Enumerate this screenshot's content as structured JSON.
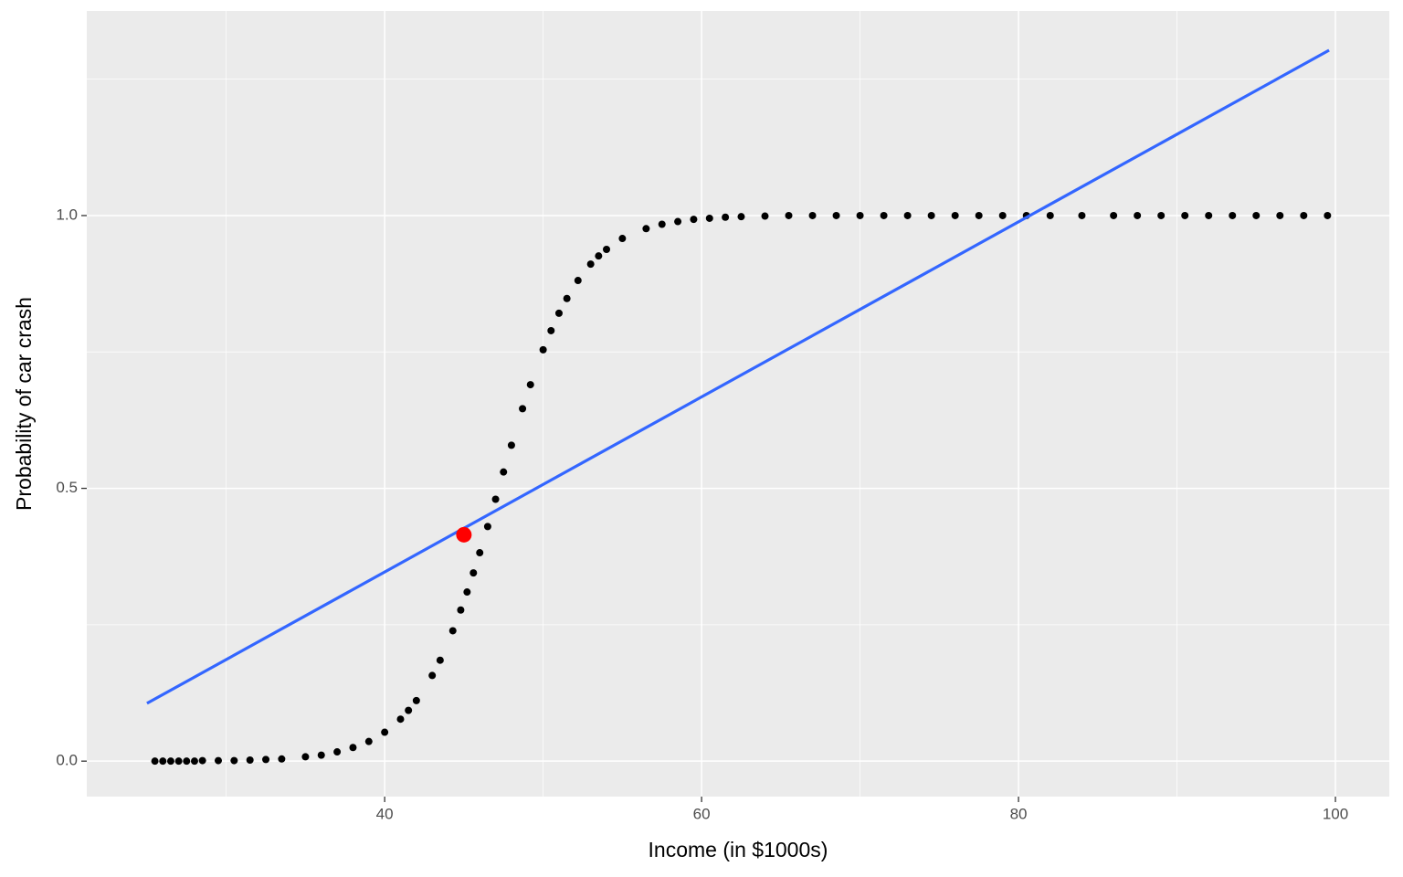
{
  "chart_data": {
    "type": "scatter",
    "x_label": "Income (in $1000s)",
    "y_label": "Probability of car crash",
    "xlim": [
      21.2,
      103.4
    ],
    "ylim": [
      -0.065,
      1.375
    ],
    "xticks": [
      40,
      60,
      80,
      100
    ],
    "yticks": [
      {
        "value": 0,
        "label": "0.0"
      },
      {
        "value": 0.5,
        "label": "0.5"
      },
      {
        "value": 1,
        "label": "1.0"
      }
    ],
    "minor_xticks": [
      30,
      50,
      70,
      90
    ],
    "minor_yticks": [
      0.25,
      0.75,
      1.25
    ],
    "grid": true,
    "series": [
      {
        "type": "scatter",
        "color": "#000000",
        "x": [
          25.5,
          26,
          26.5,
          27,
          27.5,
          28,
          28.5,
          29.5,
          30.5,
          31.5,
          32.5,
          33.5,
          35,
          36,
          37,
          38,
          39,
          40,
          41,
          41.5,
          42,
          43,
          43.5,
          44.3,
          44.8,
          45.2,
          45.6,
          46,
          46.5,
          47,
          47.5,
          48,
          48.7,
          49.2,
          50,
          50.5,
          51,
          51.5,
          52.2,
          53,
          53.5,
          54,
          55,
          56.5,
          57.5,
          58.5,
          59.5,
          60.5,
          61.5,
          62.5,
          64,
          65.5,
          67,
          68.5,
          70,
          71.5,
          73,
          74.5,
          76,
          77.5,
          79,
          80.5,
          82,
          84,
          86,
          87.5,
          89,
          90.5,
          92,
          93.5,
          95,
          96.5,
          98,
          99.5
        ],
        "values": [
          0,
          0,
          0,
          0,
          0,
          0,
          0.001,
          0.001,
          0.001,
          0.002,
          0.003,
          0.004,
          0.008,
          0.011,
          0.017,
          0.025,
          0.036,
          0.053,
          0.077,
          0.093,
          0.111,
          0.157,
          0.185,
          0.239,
          0.277,
          0.31,
          0.345,
          0.382,
          0.43,
          0.48,
          0.53,
          0.579,
          0.646,
          0.69,
          0.754,
          0.789,
          0.821,
          0.848,
          0.881,
          0.911,
          0.926,
          0.938,
          0.958,
          0.976,
          0.984,
          0.989,
          0.993,
          0.995,
          0.997,
          0.998,
          0.999,
          1,
          1,
          1,
          1,
          1,
          1,
          1,
          1,
          1,
          1,
          1,
          1,
          1,
          1,
          1,
          1,
          1,
          1,
          1,
          1,
          1,
          1,
          1
        ]
      },
      {
        "type": "line",
        "color": "#3366ff",
        "x": [
          25,
          99.6
        ],
        "values": [
          0.106,
          1.303
        ]
      },
      {
        "type": "scatter",
        "color": "#ff0000",
        "highlight": true,
        "x": [
          45
        ],
        "values": [
          0.415
        ]
      }
    ]
  }
}
